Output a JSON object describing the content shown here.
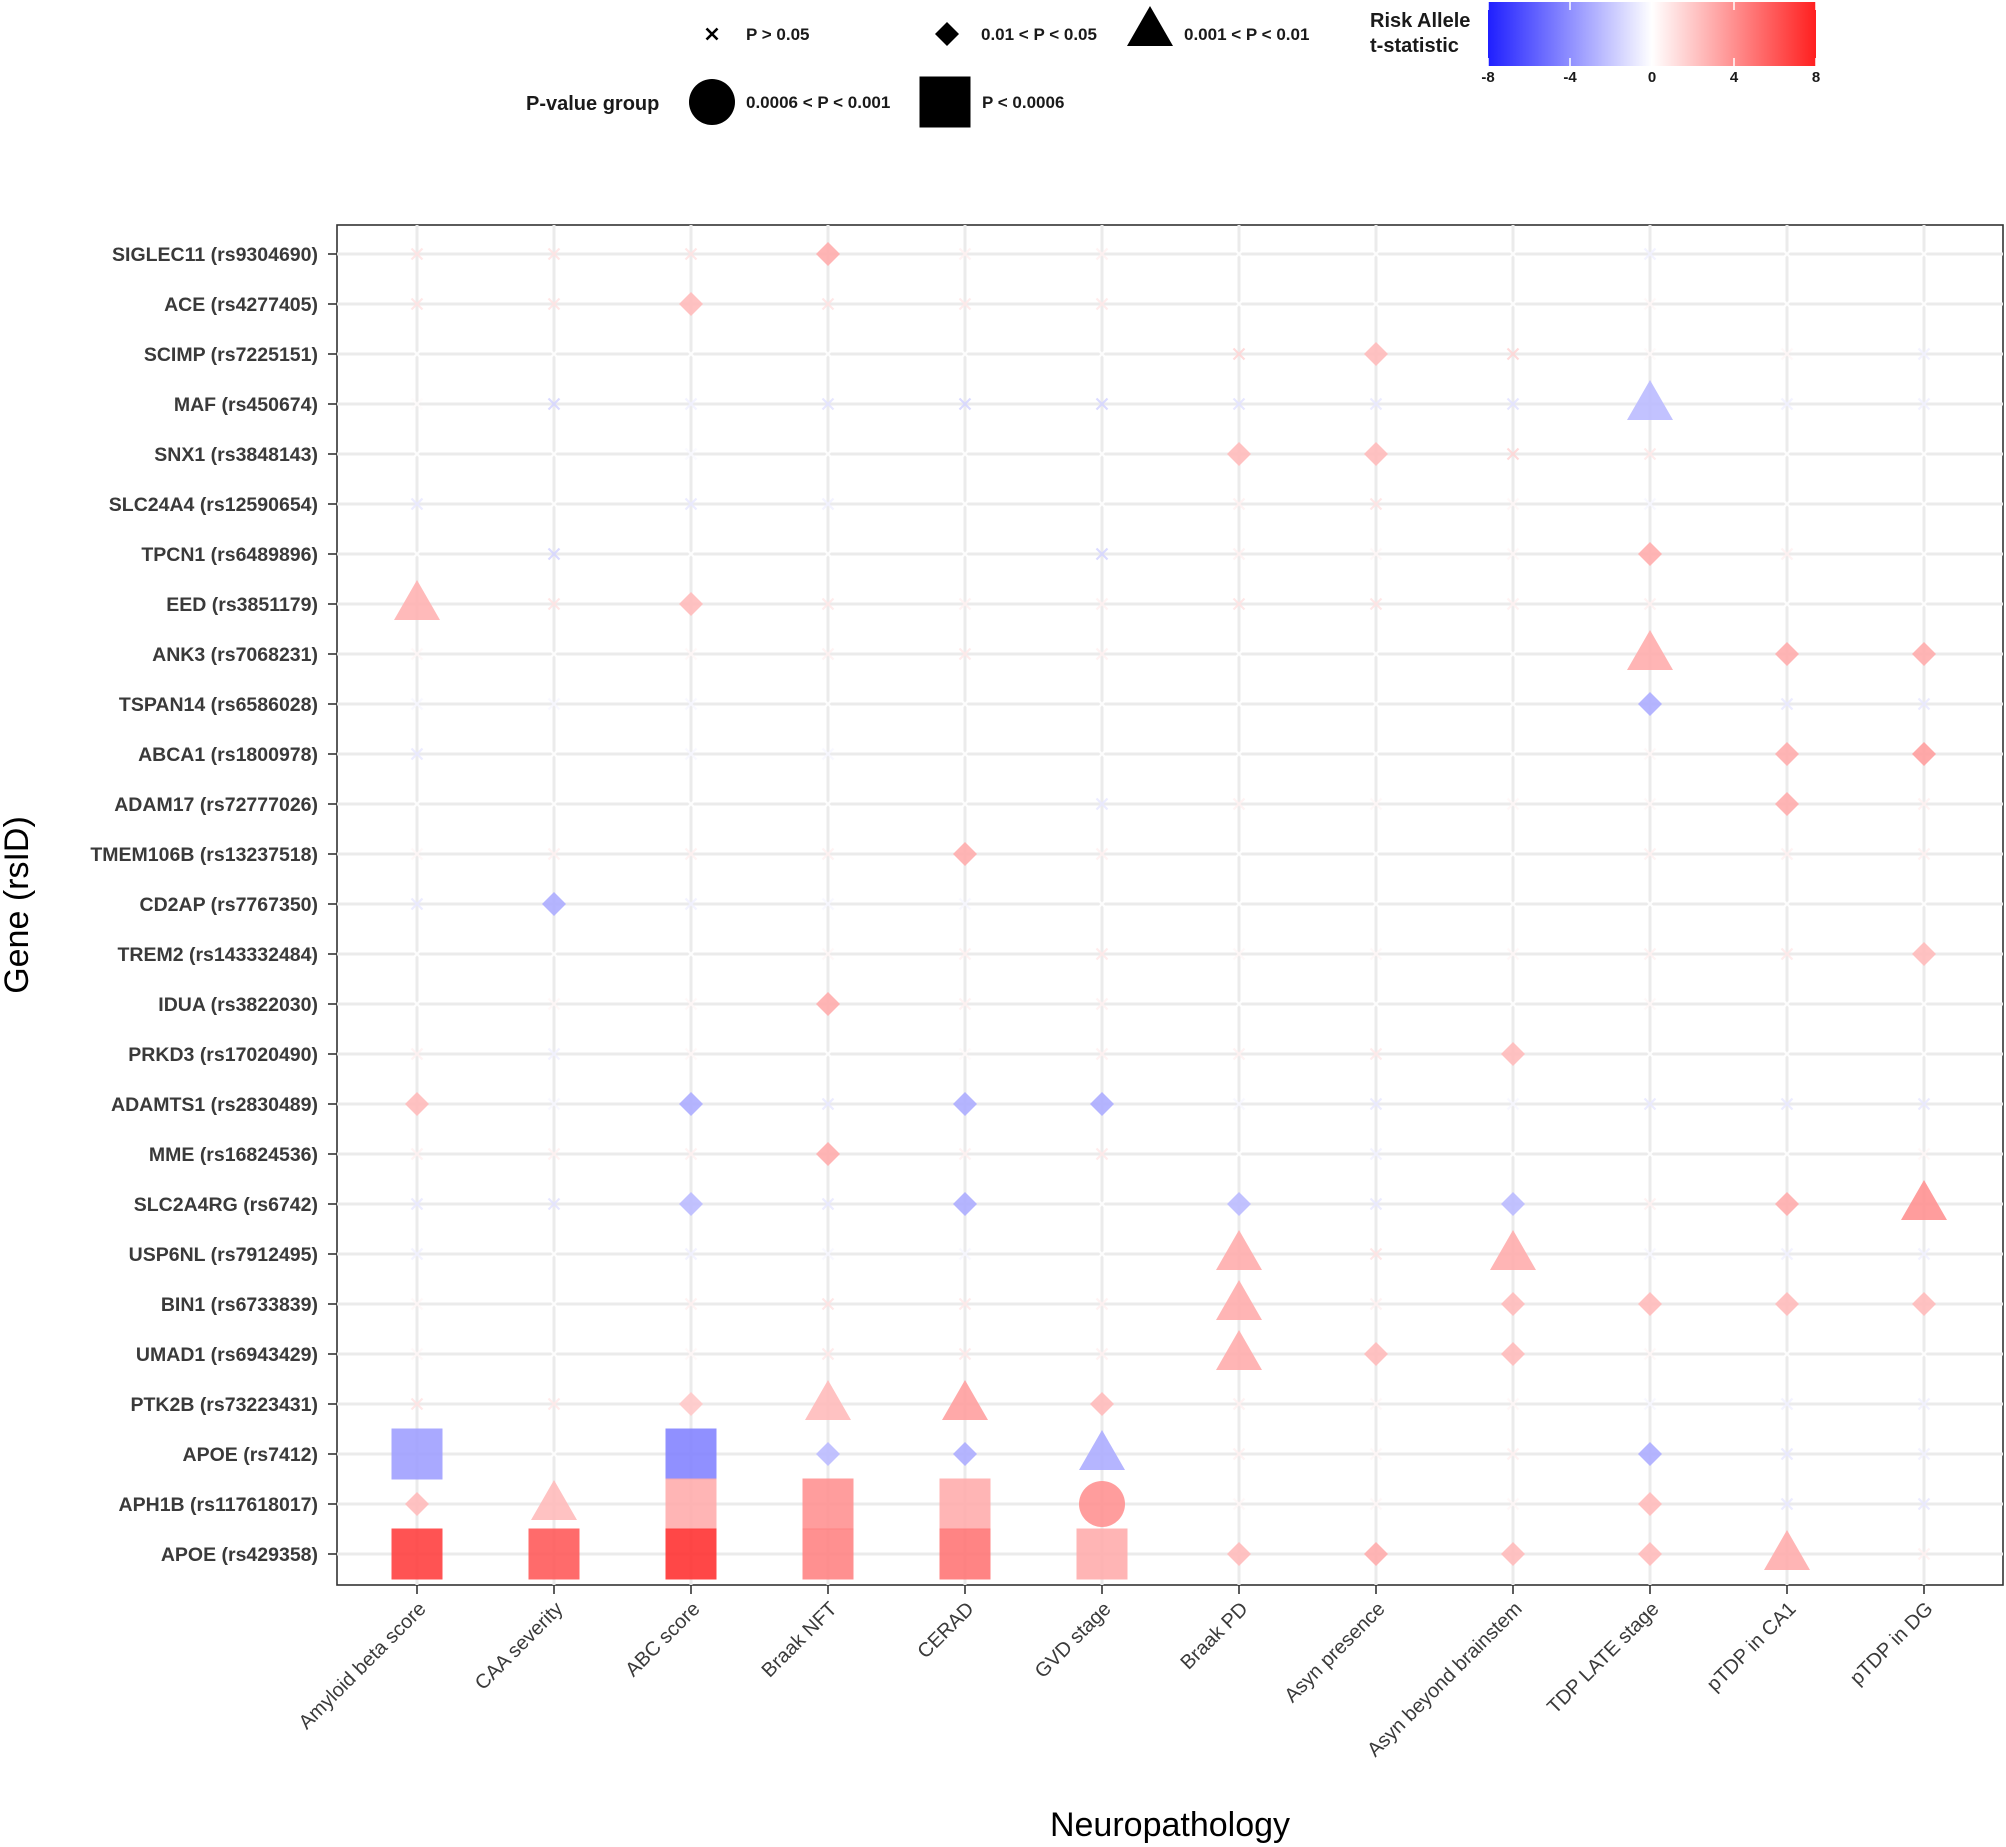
{
  "chart_data": {
    "type": "scatter",
    "xlabel": "Neuropathology",
    "ylabel": "Gene (rsID)",
    "neuropathologies": [
      "Amyloid beta score",
      "CAA severity",
      "ABC score",
      "Braak NFT",
      "CERAD",
      "GVD stage",
      "Braak PD",
      "Asyn presence",
      "Asyn beyond brainstem",
      "TDP LATE stage",
      "pTDP in CA1",
      "pTDP in DG"
    ],
    "genes": [
      "SIGLEC11 (rs9304690)",
      "ACE (rs4277405)",
      "SCIMP (rs7225151)",
      "MAF (rs450674)",
      "SNX1 (rs3848143)",
      "SLC24A4 (rs12590654)",
      "TPCN1 (rs6489896)",
      "EED (rs3851179)",
      "ANK3 (rs7068231)",
      "TSPAN14 (rs6586028)",
      "ABCA1 (rs1800978)",
      "ADAM17 (rs72777026)",
      "TMEM106B (rs13237518)",
      "CD2AP (rs7767350)",
      "TREM2 (rs143332484)",
      "IDUA (rs3822030)",
      "PRKD3 (rs17020490)",
      "ADAMTS1 (rs2830489)",
      "MME (rs16824536)",
      "SLC2A4RG (rs6742)",
      "USP6NL (rs7912495)",
      "BIN1 (rs6733839)",
      "UMAD1 (rs6943429)",
      "PTK2B (rs73223431)",
      "APOE (rs7412)",
      "APH1B (rs117618017)",
      "APOE (rs429358)"
    ],
    "p_groups": [
      "P > 0.05",
      "0.01 < P < 0.05",
      "0.001 < P < 0.01",
      "0.0006 < P < 0.001",
      "P < 0.0006"
    ],
    "p_group_legend_title": "P-value group",
    "color_legend_title": [
      "Risk Allele",
      "t-statistic"
    ],
    "color_scale": {
      "min": -8,
      "max": 8,
      "ticks": [
        -8,
        -4,
        0,
        4,
        8
      ],
      "low": "#1f1fff",
      "mid": "#ffffff",
      "high": "#ff1f1f"
    },
    "x_range": [
      0,
      11
    ],
    "y_range": [
      0,
      26
    ],
    "values": [
      [
        1.0,
        1.0,
        1.0,
        3.0,
        0.5,
        0.5,
        0,
        0,
        0,
        -0.5,
        0,
        0
      ],
      [
        1.0,
        1.0,
        2.5,
        1.0,
        0.8,
        0.8,
        0,
        0,
        0,
        0.3,
        0,
        0
      ],
      [
        0,
        0,
        0,
        0,
        0,
        0,
        1.5,
        2.5,
        1.5,
        0.2,
        0.3,
        -0.5
      ],
      [
        0.1,
        -1.5,
        -0.5,
        -1.0,
        -1.5,
        -1.5,
        -1.0,
        -0.8,
        -1.0,
        -2.5,
        -0.5,
        -0.5
      ],
      [
        0,
        0,
        -0.2,
        0,
        0,
        0,
        2.5,
        2.5,
        1.5,
        0.8,
        0,
        0
      ],
      [
        -0.8,
        0,
        -0.8,
        -0.5,
        0,
        0,
        0.5,
        1.0,
        0.3,
        -0.3,
        0,
        0
      ],
      [
        0,
        -1.5,
        0,
        0,
        0,
        -1.5,
        0.5,
        0.3,
        0.3,
        3.0,
        0.5,
        0
      ],
      [
        2.8,
        1.0,
        2.5,
        0.8,
        0.5,
        0.5,
        1.0,
        1.0,
        0.5,
        0.5,
        0,
        0
      ],
      [
        0.3,
        0,
        0.3,
        0.5,
        0.8,
        0.5,
        0,
        0,
        0,
        3.0,
        3.0,
        3.0
      ],
      [
        -0.3,
        -0.3,
        -0.3,
        0,
        0,
        0,
        0,
        0,
        0,
        -3.0,
        -0.8,
        -0.8
      ],
      [
        -0.8,
        0,
        -0.3,
        -0.3,
        0,
        0,
        0,
        0,
        0,
        0.3,
        3.0,
        3.5
      ],
      [
        0,
        0,
        0,
        0,
        0,
        -0.8,
        0.5,
        0.3,
        0.3,
        0.3,
        3.0,
        0.5
      ],
      [
        0.3,
        0.5,
        0.5,
        0.5,
        3.0,
        0.5,
        0,
        0,
        0,
        0.5,
        0.5,
        0.5
      ],
      [
        -0.8,
        -3.0,
        -0.5,
        -0.3,
        -0.3,
        0,
        0,
        0,
        0,
        0,
        0,
        0
      ],
      [
        0,
        0,
        0,
        0.3,
        0.5,
        0.8,
        0.3,
        0.3,
        0.3,
        0.5,
        0.8,
        2.5
      ],
      [
        0,
        0.3,
        0.3,
        3.0,
        0.5,
        0.5,
        0,
        0,
        0,
        0.3,
        0,
        0
      ],
      [
        0.5,
        -0.5,
        0.3,
        0,
        0.2,
        0.5,
        0.5,
        0.8,
        2.5,
        0,
        0,
        0
      ],
      [
        2.5,
        -0.3,
        -3.0,
        -0.8,
        -3.0,
        -3.0,
        -0.3,
        -0.8,
        -0.3,
        -0.8,
        -0.8,
        -0.8
      ],
      [
        0.5,
        0.5,
        0.5,
        3.0,
        0.5,
        0.8,
        0,
        -0.5,
        0,
        0,
        0,
        0.3
      ],
      [
        -0.8,
        -1.0,
        -2.5,
        -0.8,
        -3.0,
        0,
        -2.5,
        -0.8,
        -2.5,
        0.5,
        3.0,
        4.0
      ],
      [
        -0.5,
        0,
        -0.5,
        -0.3,
        -0.3,
        0,
        3.0,
        1.0,
        3.0,
        -0.3,
        -0.5,
        -0.5
      ],
      [
        0.3,
        0,
        0.5,
        1.0,
        0.8,
        0.5,
        3.0,
        0.5,
        2.5,
        2.5,
        2.5,
        2.5
      ],
      [
        0.3,
        0,
        0.3,
        0.8,
        0.8,
        0.5,
        3.0,
        2.5,
        2.5,
        0.3,
        0,
        0
      ],
      [
        1.0,
        0.8,
        2.0,
        2.5,
        3.5,
        2.5,
        0.5,
        0.3,
        0.3,
        -0.3,
        -0.5,
        -0.5
      ],
      [
        -3.5,
        0,
        -4.5,
        -2.5,
        -3.0,
        -3.0,
        0.5,
        0.3,
        0.5,
        -3.0,
        -0.8,
        -0.5
      ],
      [
        2.5,
        2.5,
        3.0,
        4.0,
        3.0,
        4.0,
        0.3,
        0.3,
        0.3,
        2.5,
        -0.8,
        -0.8
      ],
      [
        7.0,
        6.0,
        7.5,
        4.5,
        5.0,
        3.0,
        2.5,
        3.0,
        2.5,
        2.5,
        3.0,
        0.5
      ]
    ],
    "p_group": [
      [
        0,
        0,
        0,
        1,
        0,
        0,
        0,
        0,
        0,
        0,
        0,
        0
      ],
      [
        0,
        0,
        1,
        0,
        0,
        0,
        0,
        0,
        0,
        0,
        0,
        0
      ],
      [
        0,
        0,
        0,
        0,
        0,
        0,
        0,
        1,
        0,
        0,
        0,
        0
      ],
      [
        0,
        0,
        0,
        0,
        0,
        0,
        0,
        0,
        0,
        2,
        0,
        0
      ],
      [
        0,
        0,
        0,
        0,
        0,
        0,
        1,
        1,
        0,
        0,
        0,
        0
      ],
      [
        0,
        0,
        0,
        0,
        0,
        0,
        0,
        0,
        0,
        0,
        0,
        0
      ],
      [
        0,
        0,
        0,
        0,
        0,
        0,
        0,
        0,
        0,
        1,
        0,
        0
      ],
      [
        2,
        0,
        1,
        0,
        0,
        0,
        0,
        0,
        0,
        0,
        0,
        0
      ],
      [
        0,
        0,
        0,
        0,
        0,
        0,
        0,
        0,
        0,
        2,
        1,
        1
      ],
      [
        0,
        0,
        0,
        0,
        0,
        0,
        0,
        0,
        0,
        1,
        0,
        0
      ],
      [
        0,
        0,
        0,
        0,
        0,
        0,
        0,
        0,
        0,
        0,
        1,
        1
      ],
      [
        0,
        0,
        0,
        0,
        0,
        0,
        0,
        0,
        0,
        0,
        1,
        0
      ],
      [
        0,
        0,
        0,
        0,
        1,
        0,
        0,
        0,
        0,
        0,
        0,
        0
      ],
      [
        0,
        1,
        0,
        0,
        0,
        0,
        0,
        0,
        0,
        0,
        0,
        0
      ],
      [
        0,
        0,
        0,
        0,
        0,
        0,
        0,
        0,
        0,
        0,
        0,
        1
      ],
      [
        0,
        0,
        0,
        1,
        0,
        0,
        0,
        0,
        0,
        0,
        0,
        0
      ],
      [
        0,
        0,
        0,
        0,
        0,
        0,
        0,
        0,
        1,
        0,
        0,
        0
      ],
      [
        1,
        0,
        1,
        0,
        1,
        1,
        0,
        0,
        0,
        0,
        0,
        0
      ],
      [
        0,
        0,
        0,
        1,
        0,
        0,
        0,
        0,
        0,
        0,
        0,
        0
      ],
      [
        0,
        0,
        1,
        0,
        1,
        0,
        1,
        0,
        1,
        0,
        1,
        2
      ],
      [
        0,
        0,
        0,
        0,
        0,
        0,
        2,
        0,
        2,
        0,
        0,
        0
      ],
      [
        0,
        0,
        0,
        0,
        0,
        0,
        2,
        0,
        1,
        1,
        1,
        1
      ],
      [
        0,
        0,
        0,
        0,
        0,
        0,
        2,
        1,
        1,
        0,
        0,
        0
      ],
      [
        0,
        0,
        1,
        2,
        2,
        1,
        0,
        0,
        0,
        0,
        0,
        0
      ],
      [
        4,
        0,
        4,
        1,
        1,
        2,
        0,
        0,
        0,
        1,
        0,
        0
      ],
      [
        1,
        2,
        4,
        4,
        4,
        3,
        0,
        0,
        0,
        1,
        0,
        0
      ],
      [
        4,
        4,
        4,
        4,
        4,
        4,
        1,
        1,
        1,
        1,
        2,
        0
      ]
    ]
  }
}
